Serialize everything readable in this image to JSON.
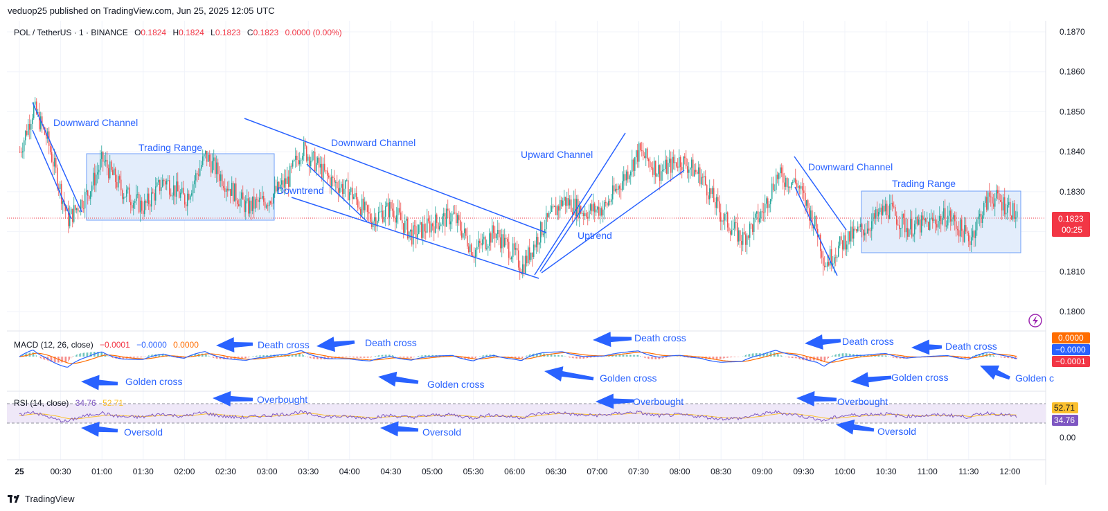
{
  "header": {
    "credit": "veduop25 published on TradingView.com, Jun 25, 2025 12:05 UTC"
  },
  "legend": {
    "symbol": "POL / TetherUS · 1 · BINANCE",
    "o_label": "O",
    "o_value": "0.1824",
    "h_label": "H",
    "h_value": "0.1824",
    "l_label": "L",
    "l_value": "0.1823",
    "c_label": "C",
    "c_value": "0.1823",
    "change": "0.0000 (0.00%)"
  },
  "price_badge": {
    "price": "0.1823",
    "countdown": "00:25"
  },
  "macd": {
    "label": "MACD (12, 26, close)",
    "v1": "−0.0001",
    "v2": "−0.0000",
    "v3": "0.0000",
    "badges": [
      "0.0000",
      "−0.0000",
      "−0.0001"
    ]
  },
  "rsi": {
    "label": "RSI (14, close)",
    "v1": "34.76",
    "v2": "52.71",
    "badges": [
      "52.71",
      "34.76"
    ]
  },
  "colors": {
    "up": "#26a69a",
    "down": "#ef5350",
    "annotation": "#2962ff",
    "macd_line": "#2962ff",
    "signal_line": "#ff6d00",
    "rsi_line": "#7e57c2",
    "rsi_ma": "#fbc02d",
    "price_badge": "#f23645",
    "range_fill": "#e3edfb"
  },
  "annotations": {
    "downward_channel": "Downward Channel",
    "trading_range": "Trading Range",
    "downtrend": "Downtrend",
    "upward_channel": "Upward Channel",
    "uptrend": "Uptrend",
    "golden_cross": "Golden cross",
    "golden_cross_cut": "Golden c",
    "death_cross": "Death cross",
    "overbought": "Overbought",
    "oversold": "Oversold"
  },
  "footer": {
    "brand": "TradingView"
  },
  "chart_data": {
    "type": "candlestick",
    "symbol": "POL / TetherUS",
    "interval": "1",
    "exchange": "BINANCE",
    "price_axis_ticks": [
      "0.1870",
      "0.1860",
      "0.1850",
      "0.1840",
      "0.1830",
      "0.1820",
      "0.1810",
      "0.1800"
    ],
    "price_ylim": [
      0.1797,
      0.1873
    ],
    "time_axis_ticks": [
      "25",
      "00:30",
      "01:00",
      "01:30",
      "02:00",
      "02:30",
      "03:00",
      "03:30",
      "04:00",
      "04:30",
      "05:00",
      "05:30",
      "06:00",
      "06:30",
      "07:00",
      "07:30",
      "08:00",
      "08:30",
      "09:00",
      "09:30",
      "10:00",
      "10:30",
      "11:00",
      "11:30",
      "12:00"
    ],
    "rsi_axis_ticks": [
      "0.00"
    ],
    "last_price": 0.1823,
    "approx_close_path": [
      {
        "t": "00:00",
        "close": 0.184
      },
      {
        "t": "00:10",
        "close": 0.1851
      },
      {
        "t": "00:20",
        "close": 0.1843
      },
      {
        "t": "00:35",
        "close": 0.1823
      },
      {
        "t": "00:50",
        "close": 0.183
      },
      {
        "t": "01:00",
        "close": 0.1838
      },
      {
        "t": "01:15",
        "close": 0.183
      },
      {
        "t": "01:30",
        "close": 0.1826
      },
      {
        "t": "01:45",
        "close": 0.1833
      },
      {
        "t": "02:00",
        "close": 0.1828
      },
      {
        "t": "02:15",
        "close": 0.1839
      },
      {
        "t": "02:30",
        "close": 0.1832
      },
      {
        "t": "02:45",
        "close": 0.1826
      },
      {
        "t": "03:00",
        "close": 0.1828
      },
      {
        "t": "03:15",
        "close": 0.1833
      },
      {
        "t": "03:25",
        "close": 0.1841
      },
      {
        "t": "03:45",
        "close": 0.1833
      },
      {
        "t": "04:00",
        "close": 0.183
      },
      {
        "t": "04:15",
        "close": 0.1823
      },
      {
        "t": "04:30",
        "close": 0.1826
      },
      {
        "t": "04:45",
        "close": 0.1819
      },
      {
        "t": "05:00",
        "close": 0.1822
      },
      {
        "t": "05:15",
        "close": 0.1824
      },
      {
        "t": "05:30",
        "close": 0.1815
      },
      {
        "t": "05:45",
        "close": 0.182
      },
      {
        "t": "06:00",
        "close": 0.1814
      },
      {
        "t": "06:05",
        "close": 0.1811
      },
      {
        "t": "06:20",
        "close": 0.1821
      },
      {
        "t": "06:35",
        "close": 0.1828
      },
      {
        "t": "06:50",
        "close": 0.1825
      },
      {
        "t": "07:05",
        "close": 0.1826
      },
      {
        "t": "07:20",
        "close": 0.1834
      },
      {
        "t": "07:30",
        "close": 0.184
      },
      {
        "t": "07:45",
        "close": 0.1835
      },
      {
        "t": "08:00",
        "close": 0.1838
      },
      {
        "t": "08:15",
        "close": 0.1834
      },
      {
        "t": "08:30",
        "close": 0.1824
      },
      {
        "t": "08:45",
        "close": 0.1818
      },
      {
        "t": "09:00",
        "close": 0.1825
      },
      {
        "t": "09:10",
        "close": 0.1834
      },
      {
        "t": "09:25",
        "close": 0.1832
      },
      {
        "t": "09:40",
        "close": 0.182
      },
      {
        "t": "09:45",
        "close": 0.1812
      },
      {
        "t": "10:00",
        "close": 0.1818
      },
      {
        "t": "10:15",
        "close": 0.1821
      },
      {
        "t": "10:30",
        "close": 0.1826
      },
      {
        "t": "10:45",
        "close": 0.1821
      },
      {
        "t": "11:00",
        "close": 0.1822
      },
      {
        "t": "11:15",
        "close": 0.1824
      },
      {
        "t": "11:30",
        "close": 0.1818
      },
      {
        "t": "11:45",
        "close": 0.1829
      },
      {
        "t": "12:00",
        "close": 0.1826
      },
      {
        "t": "12:05",
        "close": 0.1823
      }
    ],
    "rsi_last": 34.76,
    "rsi_ma_last": 52.71,
    "macd_last": -0.0001,
    "signal_last": -0.0,
    "histogram_last": 0.0
  }
}
